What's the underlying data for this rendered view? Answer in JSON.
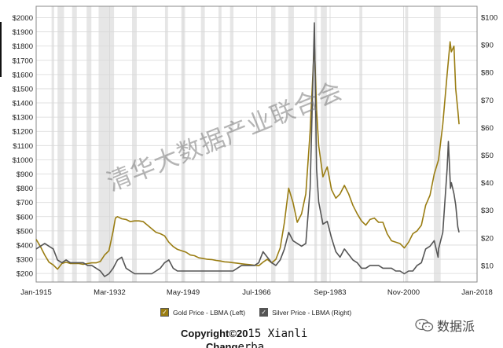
{
  "chart_data": {
    "type": "line",
    "x_ticks": [
      "Jan-1915",
      "Mar-1932",
      "May-1949",
      "Jul-1966",
      "Sep-1983",
      "Nov-2000",
      "Jan-2018"
    ],
    "x_range": [
      1915,
      2018
    ],
    "left_axis": {
      "ticks": [
        "$200",
        "$300",
        "$400",
        "$500",
        "$600",
        "$700",
        "$800",
        "$900",
        "$1000",
        "$1100",
        "$1200",
        "$1300",
        "$1400",
        "$1500",
        "$1600",
        "$1700",
        "$1800",
        "$1900",
        "$2000"
      ],
      "range": [
        140,
        2080
      ]
    },
    "right_axis": {
      "ticks": [
        "$10",
        "$20",
        "$30",
        "$40",
        "$50",
        "$60",
        "$70",
        "$80",
        "$90",
        "$100"
      ],
      "range": [
        4,
        104
      ]
    },
    "grid": true,
    "recession_shading": [
      [
        1918.6,
        1919.2
      ],
      [
        1920.0,
        1921.5
      ],
      [
        1923.4,
        1924.5
      ],
      [
        1926.8,
        1927.9
      ],
      [
        1929.6,
        1933.2
      ],
      [
        1937.4,
        1938.5
      ],
      [
        1945.1,
        1945.8
      ],
      [
        1948.9,
        1949.8
      ],
      [
        1953.5,
        1954.4
      ],
      [
        1957.6,
        1958.3
      ],
      [
        1960.3,
        1961.1
      ],
      [
        1969.9,
        1970.9
      ],
      [
        1973.9,
        1975.2
      ],
      [
        1980.0,
        1980.6
      ],
      [
        1981.5,
        1982.9
      ],
      [
        1990.5,
        1991.2
      ],
      [
        2001.2,
        2001.9
      ],
      [
        2007.9,
        2009.5
      ]
    ],
    "series": [
      {
        "name": "Gold Price - LBMA (Left)",
        "axis": "left",
        "color": "#9a7d12",
        "points": [
          [
            1915,
            440
          ],
          [
            1916,
            390
          ],
          [
            1917,
            330
          ],
          [
            1918,
            280
          ],
          [
            1919,
            260
          ],
          [
            1920,
            230
          ],
          [
            1921,
            270
          ],
          [
            1922,
            280
          ],
          [
            1923,
            270
          ],
          [
            1924,
            270
          ],
          [
            1925,
            270
          ],
          [
            1926,
            265
          ],
          [
            1927,
            270
          ],
          [
            1928,
            275
          ],
          [
            1929,
            275
          ],
          [
            1930,
            285
          ],
          [
            1931,
            330
          ],
          [
            1932,
            360
          ],
          [
            1933,
            500
          ],
          [
            1933.5,
            590
          ],
          [
            1934,
            600
          ],
          [
            1935,
            585
          ],
          [
            1936,
            580
          ],
          [
            1937,
            565
          ],
          [
            1938,
            570
          ],
          [
            1939,
            570
          ],
          [
            1940,
            565
          ],
          [
            1941,
            540
          ],
          [
            1942,
            515
          ],
          [
            1943,
            490
          ],
          [
            1944,
            480
          ],
          [
            1945,
            465
          ],
          [
            1946,
            420
          ],
          [
            1947,
            390
          ],
          [
            1948,
            370
          ],
          [
            1949,
            360
          ],
          [
            1950,
            350
          ],
          [
            1951,
            330
          ],
          [
            1952,
            325
          ],
          [
            1953,
            310
          ],
          [
            1954,
            305
          ],
          [
            1955,
            300
          ],
          [
            1956,
            298
          ],
          [
            1957,
            292
          ],
          [
            1958,
            288
          ],
          [
            1959,
            282
          ],
          [
            1960,
            280
          ],
          [
            1961,
            276
          ],
          [
            1962,
            272
          ],
          [
            1963,
            268
          ],
          [
            1964,
            265
          ],
          [
            1965,
            262
          ],
          [
            1966,
            258
          ],
          [
            1967,
            255
          ],
          [
            1968,
            280
          ],
          [
            1969,
            300
          ],
          [
            1970,
            275
          ],
          [
            1971,
            300
          ],
          [
            1972,
            380
          ],
          [
            1973,
            560
          ],
          [
            1974,
            800
          ],
          [
            1975,
            700
          ],
          [
            1976,
            560
          ],
          [
            1977,
            620
          ],
          [
            1978,
            760
          ],
          [
            1979,
            1200
          ],
          [
            1980,
            1820
          ],
          [
            1980.5,
            1350
          ],
          [
            1981,
            1100
          ],
          [
            1982,
            880
          ],
          [
            1983,
            950
          ],
          [
            1984,
            790
          ],
          [
            1985,
            730
          ],
          [
            1986,
            760
          ],
          [
            1987,
            820
          ],
          [
            1988,
            760
          ],
          [
            1989,
            680
          ],
          [
            1990,
            620
          ],
          [
            1991,
            570
          ],
          [
            1992,
            540
          ],
          [
            1993,
            580
          ],
          [
            1994,
            590
          ],
          [
            1995,
            560
          ],
          [
            1996,
            560
          ],
          [
            1997,
            480
          ],
          [
            1998,
            430
          ],
          [
            1999,
            420
          ],
          [
            2000,
            410
          ],
          [
            2001,
            380
          ],
          [
            2002,
            420
          ],
          [
            2003,
            480
          ],
          [
            2004,
            500
          ],
          [
            2005,
            540
          ],
          [
            2006,
            680
          ],
          [
            2007,
            750
          ],
          [
            2008,
            900
          ],
          [
            2009,
            1000
          ],
          [
            2010,
            1250
          ],
          [
            2011,
            1600
          ],
          [
            2011.7,
            1830
          ],
          [
            2012,
            1760
          ],
          [
            2012.6,
            1800
          ],
          [
            2013,
            1500
          ],
          [
            2013.5,
            1350
          ],
          [
            2013.8,
            1250
          ]
        ]
      },
      {
        "name": "Silver Price - LBMA (Right)",
        "axis": "right",
        "color": "#555555",
        "points": [
          [
            1915,
            16
          ],
          [
            1916,
            17
          ],
          [
            1917,
            18
          ],
          [
            1918,
            17
          ],
          [
            1919,
            16
          ],
          [
            1920,
            12
          ],
          [
            1921,
            11
          ],
          [
            1922,
            12
          ],
          [
            1923,
            11
          ],
          [
            1924,
            11
          ],
          [
            1925,
            11
          ],
          [
            1926,
            11
          ],
          [
            1927,
            10
          ],
          [
            1928,
            10
          ],
          [
            1929,
            9
          ],
          [
            1930,
            8
          ],
          [
            1931,
            6
          ],
          [
            1932,
            7
          ],
          [
            1933,
            9
          ],
          [
            1934,
            12
          ],
          [
            1935,
            13
          ],
          [
            1936,
            9
          ],
          [
            1937,
            8
          ],
          [
            1938,
            7
          ],
          [
            1939,
            7
          ],
          [
            1940,
            7
          ],
          [
            1941,
            7
          ],
          [
            1942,
            7
          ],
          [
            1943,
            8
          ],
          [
            1944,
            9
          ],
          [
            1945,
            11
          ],
          [
            1946,
            12
          ],
          [
            1947,
            9
          ],
          [
            1948,
            8
          ],
          [
            1949,
            8
          ],
          [
            1950,
            8
          ],
          [
            1951,
            8
          ],
          [
            1952,
            8
          ],
          [
            1953,
            8
          ],
          [
            1954,
            8
          ],
          [
            1955,
            8
          ],
          [
            1956,
            8
          ],
          [
            1957,
            8
          ],
          [
            1958,
            8
          ],
          [
            1959,
            8
          ],
          [
            1960,
            8
          ],
          [
            1961,
            8
          ],
          [
            1962,
            9
          ],
          [
            1963,
            10
          ],
          [
            1964,
            10
          ],
          [
            1965,
            10
          ],
          [
            1966,
            10
          ],
          [
            1967,
            11
          ],
          [
            1968,
            15
          ],
          [
            1969,
            13
          ],
          [
            1970,
            11
          ],
          [
            1971,
            10
          ],
          [
            1972,
            12
          ],
          [
            1973,
            16
          ],
          [
            1974,
            22
          ],
          [
            1975,
            19
          ],
          [
            1976,
            18
          ],
          [
            1977,
            17
          ],
          [
            1978,
            18
          ],
          [
            1979,
            38
          ],
          [
            1980,
            98
          ],
          [
            1980.5,
            45
          ],
          [
            1981,
            33
          ],
          [
            1982,
            25
          ],
          [
            1983,
            26
          ],
          [
            1984,
            20
          ],
          [
            1985,
            15
          ],
          [
            1986,
            13
          ],
          [
            1987,
            16
          ],
          [
            1988,
            14
          ],
          [
            1989,
            12
          ],
          [
            1990,
            11
          ],
          [
            1991,
            9
          ],
          [
            1992,
            9
          ],
          [
            1993,
            10
          ],
          [
            1994,
            10
          ],
          [
            1995,
            10
          ],
          [
            1996,
            9
          ],
          [
            1997,
            9
          ],
          [
            1998,
            9
          ],
          [
            1999,
            8
          ],
          [
            2000,
            8
          ],
          [
            2001,
            7
          ],
          [
            2002,
            8
          ],
          [
            2003,
            8
          ],
          [
            2004,
            10
          ],
          [
            2005,
            11
          ],
          [
            2006,
            16
          ],
          [
            2007,
            17
          ],
          [
            2008,
            19
          ],
          [
            2008.9,
            13
          ],
          [
            2009,
            16
          ],
          [
            2010,
            22
          ],
          [
            2011,
            45
          ],
          [
            2011.3,
            55
          ],
          [
            2011.8,
            38
          ],
          [
            2012,
            40
          ],
          [
            2012.6,
            36
          ],
          [
            2013,
            32
          ],
          [
            2013.5,
            24
          ],
          [
            2013.8,
            22
          ]
        ]
      }
    ]
  },
  "legend": {
    "gold_label": "Gold Price - LBMA (Left)",
    "silver_label": "Silver Price - LBMA (Right)",
    "gold_color": "#9a7d12",
    "silver_color": "#555555"
  },
  "watermark": "清华大数据产业联合会",
  "credit": {
    "line1_bold": "Copyright©20",
    "line1_mono": "15 Xianli",
    "line2_bold": "Chang",
    "line2_mono": "erba"
  },
  "brand": {
    "icon": "wechat-icon",
    "text": "数据派"
  }
}
